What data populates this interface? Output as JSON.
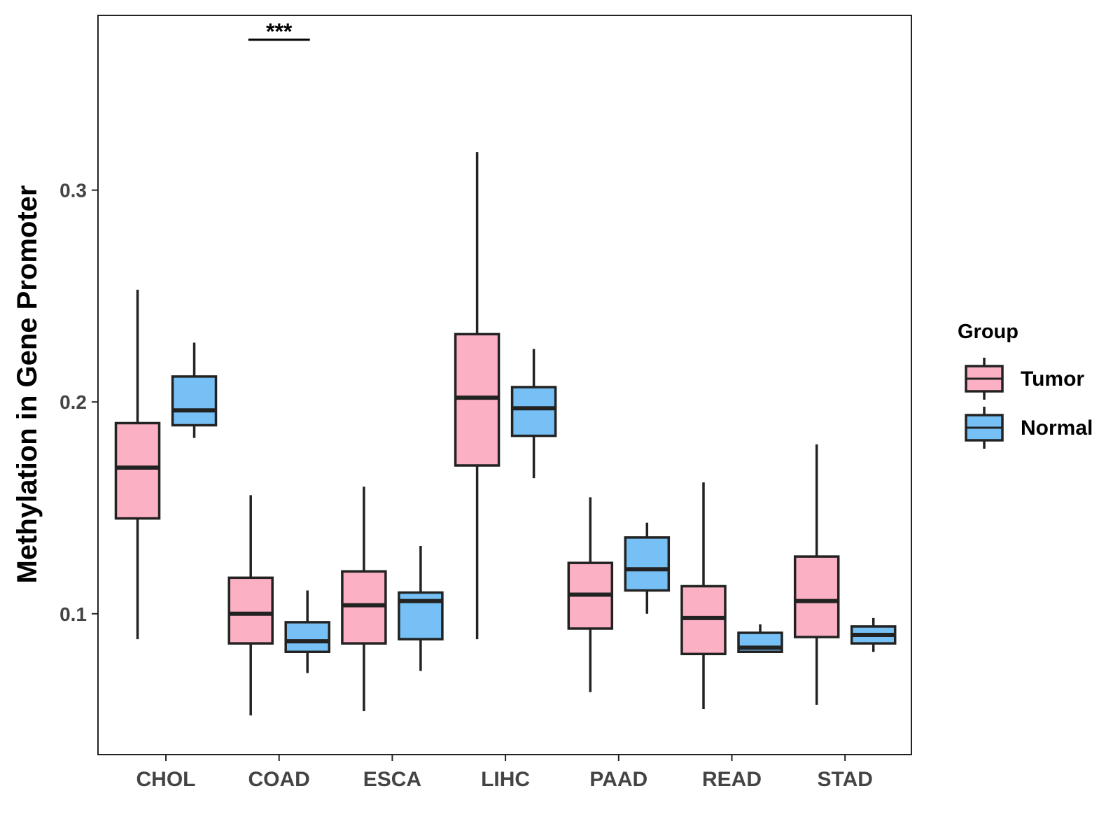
{
  "chart_data": {
    "type": "boxplot",
    "title": "",
    "xlabel": "",
    "ylabel": "Methylation in Gene Promoter",
    "ylim": [
      0.0335,
      0.3825
    ],
    "yticks": [
      0.1,
      0.2,
      0.3
    ],
    "ytick_labels": [
      "0.1",
      "0.2",
      "0.3"
    ],
    "categories": [
      "CHOL",
      "COAD",
      "ESCA",
      "LIHC",
      "PAAD",
      "READ",
      "STAD"
    ],
    "legend": {
      "title": "Group",
      "position": "right",
      "entries": [
        {
          "name": "Tumor",
          "color": "#FBB1C3"
        },
        {
          "name": "Normal",
          "color": "#76C0F6"
        }
      ]
    },
    "series": [
      {
        "name": "Tumor",
        "color": "#FBB1C3",
        "boxes": [
          {
            "category": "CHOL",
            "min": 0.088,
            "q1": 0.145,
            "median": 0.169,
            "q3": 0.19,
            "max": 0.253
          },
          {
            "category": "COAD",
            "min": 0.052,
            "q1": 0.086,
            "median": 0.1,
            "q3": 0.117,
            "max": 0.156
          },
          {
            "category": "ESCA",
            "min": 0.054,
            "q1": 0.086,
            "median": 0.104,
            "q3": 0.12,
            "max": 0.16
          },
          {
            "category": "LIHC",
            "min": 0.088,
            "q1": 0.17,
            "median": 0.202,
            "q3": 0.232,
            "max": 0.318
          },
          {
            "category": "PAAD",
            "min": 0.063,
            "q1": 0.093,
            "median": 0.109,
            "q3": 0.124,
            "max": 0.155
          },
          {
            "category": "READ",
            "min": 0.055,
            "q1": 0.081,
            "median": 0.098,
            "q3": 0.113,
            "max": 0.162
          },
          {
            "category": "STAD",
            "min": 0.057,
            "q1": 0.089,
            "median": 0.106,
            "q3": 0.127,
            "max": 0.18
          }
        ]
      },
      {
        "name": "Normal",
        "color": "#76C0F6",
        "boxes": [
          {
            "category": "CHOL",
            "min": 0.183,
            "q1": 0.189,
            "median": 0.196,
            "q3": 0.212,
            "max": 0.228
          },
          {
            "category": "COAD",
            "min": 0.072,
            "q1": 0.082,
            "median": 0.087,
            "q3": 0.096,
            "max": 0.111
          },
          {
            "category": "ESCA",
            "min": 0.073,
            "q1": 0.088,
            "median": 0.106,
            "q3": 0.11,
            "max": 0.132
          },
          {
            "category": "LIHC",
            "min": 0.164,
            "q1": 0.184,
            "median": 0.197,
            "q3": 0.207,
            "max": 0.225
          },
          {
            "category": "PAAD",
            "min": 0.1,
            "q1": 0.111,
            "median": 0.121,
            "q3": 0.136,
            "max": 0.143
          },
          {
            "category": "READ",
            "min": 0.082,
            "q1": 0.082,
            "median": 0.084,
            "q3": 0.091,
            "max": 0.095
          },
          {
            "category": "STAD",
            "min": 0.082,
            "q1": 0.086,
            "median": 0.09,
            "q3": 0.094,
            "max": 0.098
          }
        ]
      }
    ],
    "annotations": [
      {
        "category": "COAD",
        "text": "***",
        "y": 0.371
      }
    ]
  }
}
